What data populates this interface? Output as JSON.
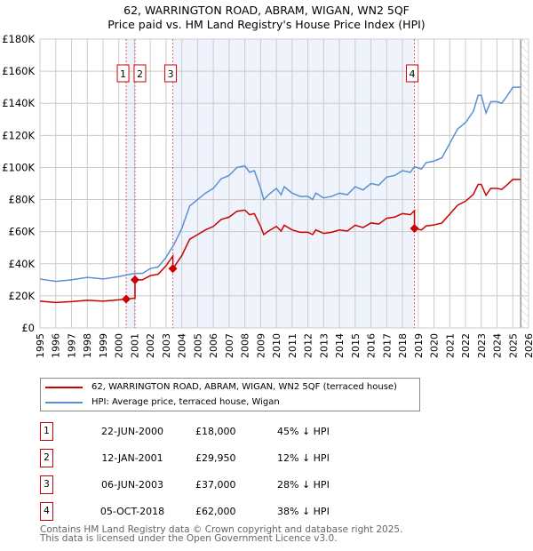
{
  "chart_data": {
    "type": "line",
    "title": "62, WARRINGTON ROAD, ABRAM, WIGAN, WN2 5QF",
    "subtitle": "Price paid vs. HM Land Registry's House Price Index (HPI)",
    "xlim": [
      1995,
      2026
    ],
    "ylim": [
      0,
      180000
    ],
    "yticks": [
      0,
      20000,
      40000,
      60000,
      80000,
      100000,
      120000,
      140000,
      160000,
      180000
    ],
    "ytick_labels": [
      "£0",
      "£20K",
      "£40K",
      "£60K",
      "£80K",
      "£100K",
      "£120K",
      "£140K",
      "£160K",
      "£180K"
    ],
    "xtick_labels": [
      "1995",
      "1996",
      "1997",
      "1998",
      "1999",
      "2000",
      "2001",
      "2002",
      "2003",
      "2004",
      "2005",
      "2006",
      "2007",
      "2008",
      "2009",
      "2010",
      "2011",
      "2012",
      "2013",
      "2014",
      "2015",
      "2016",
      "2017",
      "2018",
      "2019",
      "2020",
      "2021",
      "2022",
      "2023",
      "2024",
      "2025",
      "2026"
    ],
    "grid": true,
    "colors": {
      "property": "#cc0000",
      "hpi": "#5b8fd4",
      "shade": "#eef3fc",
      "vline": "#e06060"
    },
    "hpi_series": {
      "name": "HPI: Average price, terraced house, Wigan",
      "points": [
        [
          1995,
          30500
        ],
        [
          1996,
          29000
        ],
        [
          1997,
          30000
        ],
        [
          1998,
          31500
        ],
        [
          1999,
          30500
        ],
        [
          2000,
          32000
        ],
        [
          2000.5,
          33000
        ],
        [
          2001,
          34000
        ],
        [
          2001.5,
          34000
        ],
        [
          2002,
          37000
        ],
        [
          2002.5,
          38000
        ],
        [
          2003,
          44000
        ],
        [
          2003.5,
          52000
        ],
        [
          2004,
          62000
        ],
        [
          2004.5,
          76000
        ],
        [
          2005,
          80000
        ],
        [
          2005.5,
          84000
        ],
        [
          2006,
          87000
        ],
        [
          2006.5,
          93000
        ],
        [
          2007,
          95000
        ],
        [
          2007.5,
          100000
        ],
        [
          2008,
          101000
        ],
        [
          2008.3,
          97000
        ],
        [
          2008.6,
          98000
        ],
        [
          2009,
          87000
        ],
        [
          2009.2,
          80000
        ],
        [
          2009.5,
          83000
        ],
        [
          2010,
          87000
        ],
        [
          2010.3,
          83000
        ],
        [
          2010.5,
          88000
        ],
        [
          2011,
          84000
        ],
        [
          2011.5,
          82000
        ],
        [
          2012,
          82000
        ],
        [
          2012.3,
          80000
        ],
        [
          2012.5,
          84000
        ],
        [
          2013,
          81000
        ],
        [
          2013.5,
          82000
        ],
        [
          2014,
          84000
        ],
        [
          2014.5,
          83000
        ],
        [
          2015,
          88000
        ],
        [
          2015.5,
          86000
        ],
        [
          2016,
          90000
        ],
        [
          2016.5,
          89000
        ],
        [
          2017,
          94000
        ],
        [
          2017.5,
          95000
        ],
        [
          2018,
          98000
        ],
        [
          2018.5,
          97000
        ],
        [
          2018.76,
          100500
        ],
        [
          2019.2,
          99000
        ],
        [
          2019.5,
          103000
        ],
        [
          2020,
          104000
        ],
        [
          2020.5,
          106000
        ],
        [
          2021,
          115000
        ],
        [
          2021.5,
          124000
        ],
        [
          2022,
          128000
        ],
        [
          2022.5,
          135000
        ],
        [
          2022.8,
          145000
        ],
        [
          2023,
          145000
        ],
        [
          2023.3,
          134000
        ],
        [
          2023.6,
          141000
        ],
        [
          2024,
          141000
        ],
        [
          2024.3,
          140000
        ],
        [
          2024.6,
          144000
        ],
        [
          2025,
          150000
        ],
        [
          2025.3,
          150000
        ],
        [
          2025.5,
          150000
        ]
      ]
    },
    "property_series": {
      "name": "62, WARRINGTON ROAD, ABRAM, WIGAN, WN2 5QF (terraced house)"
    },
    "sales": [
      {
        "n": "1",
        "x": 2000.47,
        "date": "22-JUN-2000",
        "value": 18000,
        "price": "£18,000",
        "hpi": "45% ↓ HPI"
      },
      {
        "n": "2",
        "x": 2001.03,
        "date": "12-JAN-2001",
        "value": 29950,
        "price": "£29,950",
        "hpi": "12% ↓ HPI"
      },
      {
        "n": "3",
        "x": 2003.43,
        "date": "06-JUN-2003",
        "value": 37000,
        "price": "£37,000",
        "hpi": "28% ↓ HPI"
      },
      {
        "n": "4",
        "x": 2018.76,
        "date": "05-OCT-2018",
        "value": 62000,
        "price": "£62,000",
        "hpi": "38% ↓ HPI"
      }
    ],
    "data_end": 2025.5
  },
  "footer": {
    "line1": "Contains HM Land Registry data © Crown copyright and database right 2025.",
    "line2": "This data is licensed under the Open Government Licence v3.0."
  }
}
